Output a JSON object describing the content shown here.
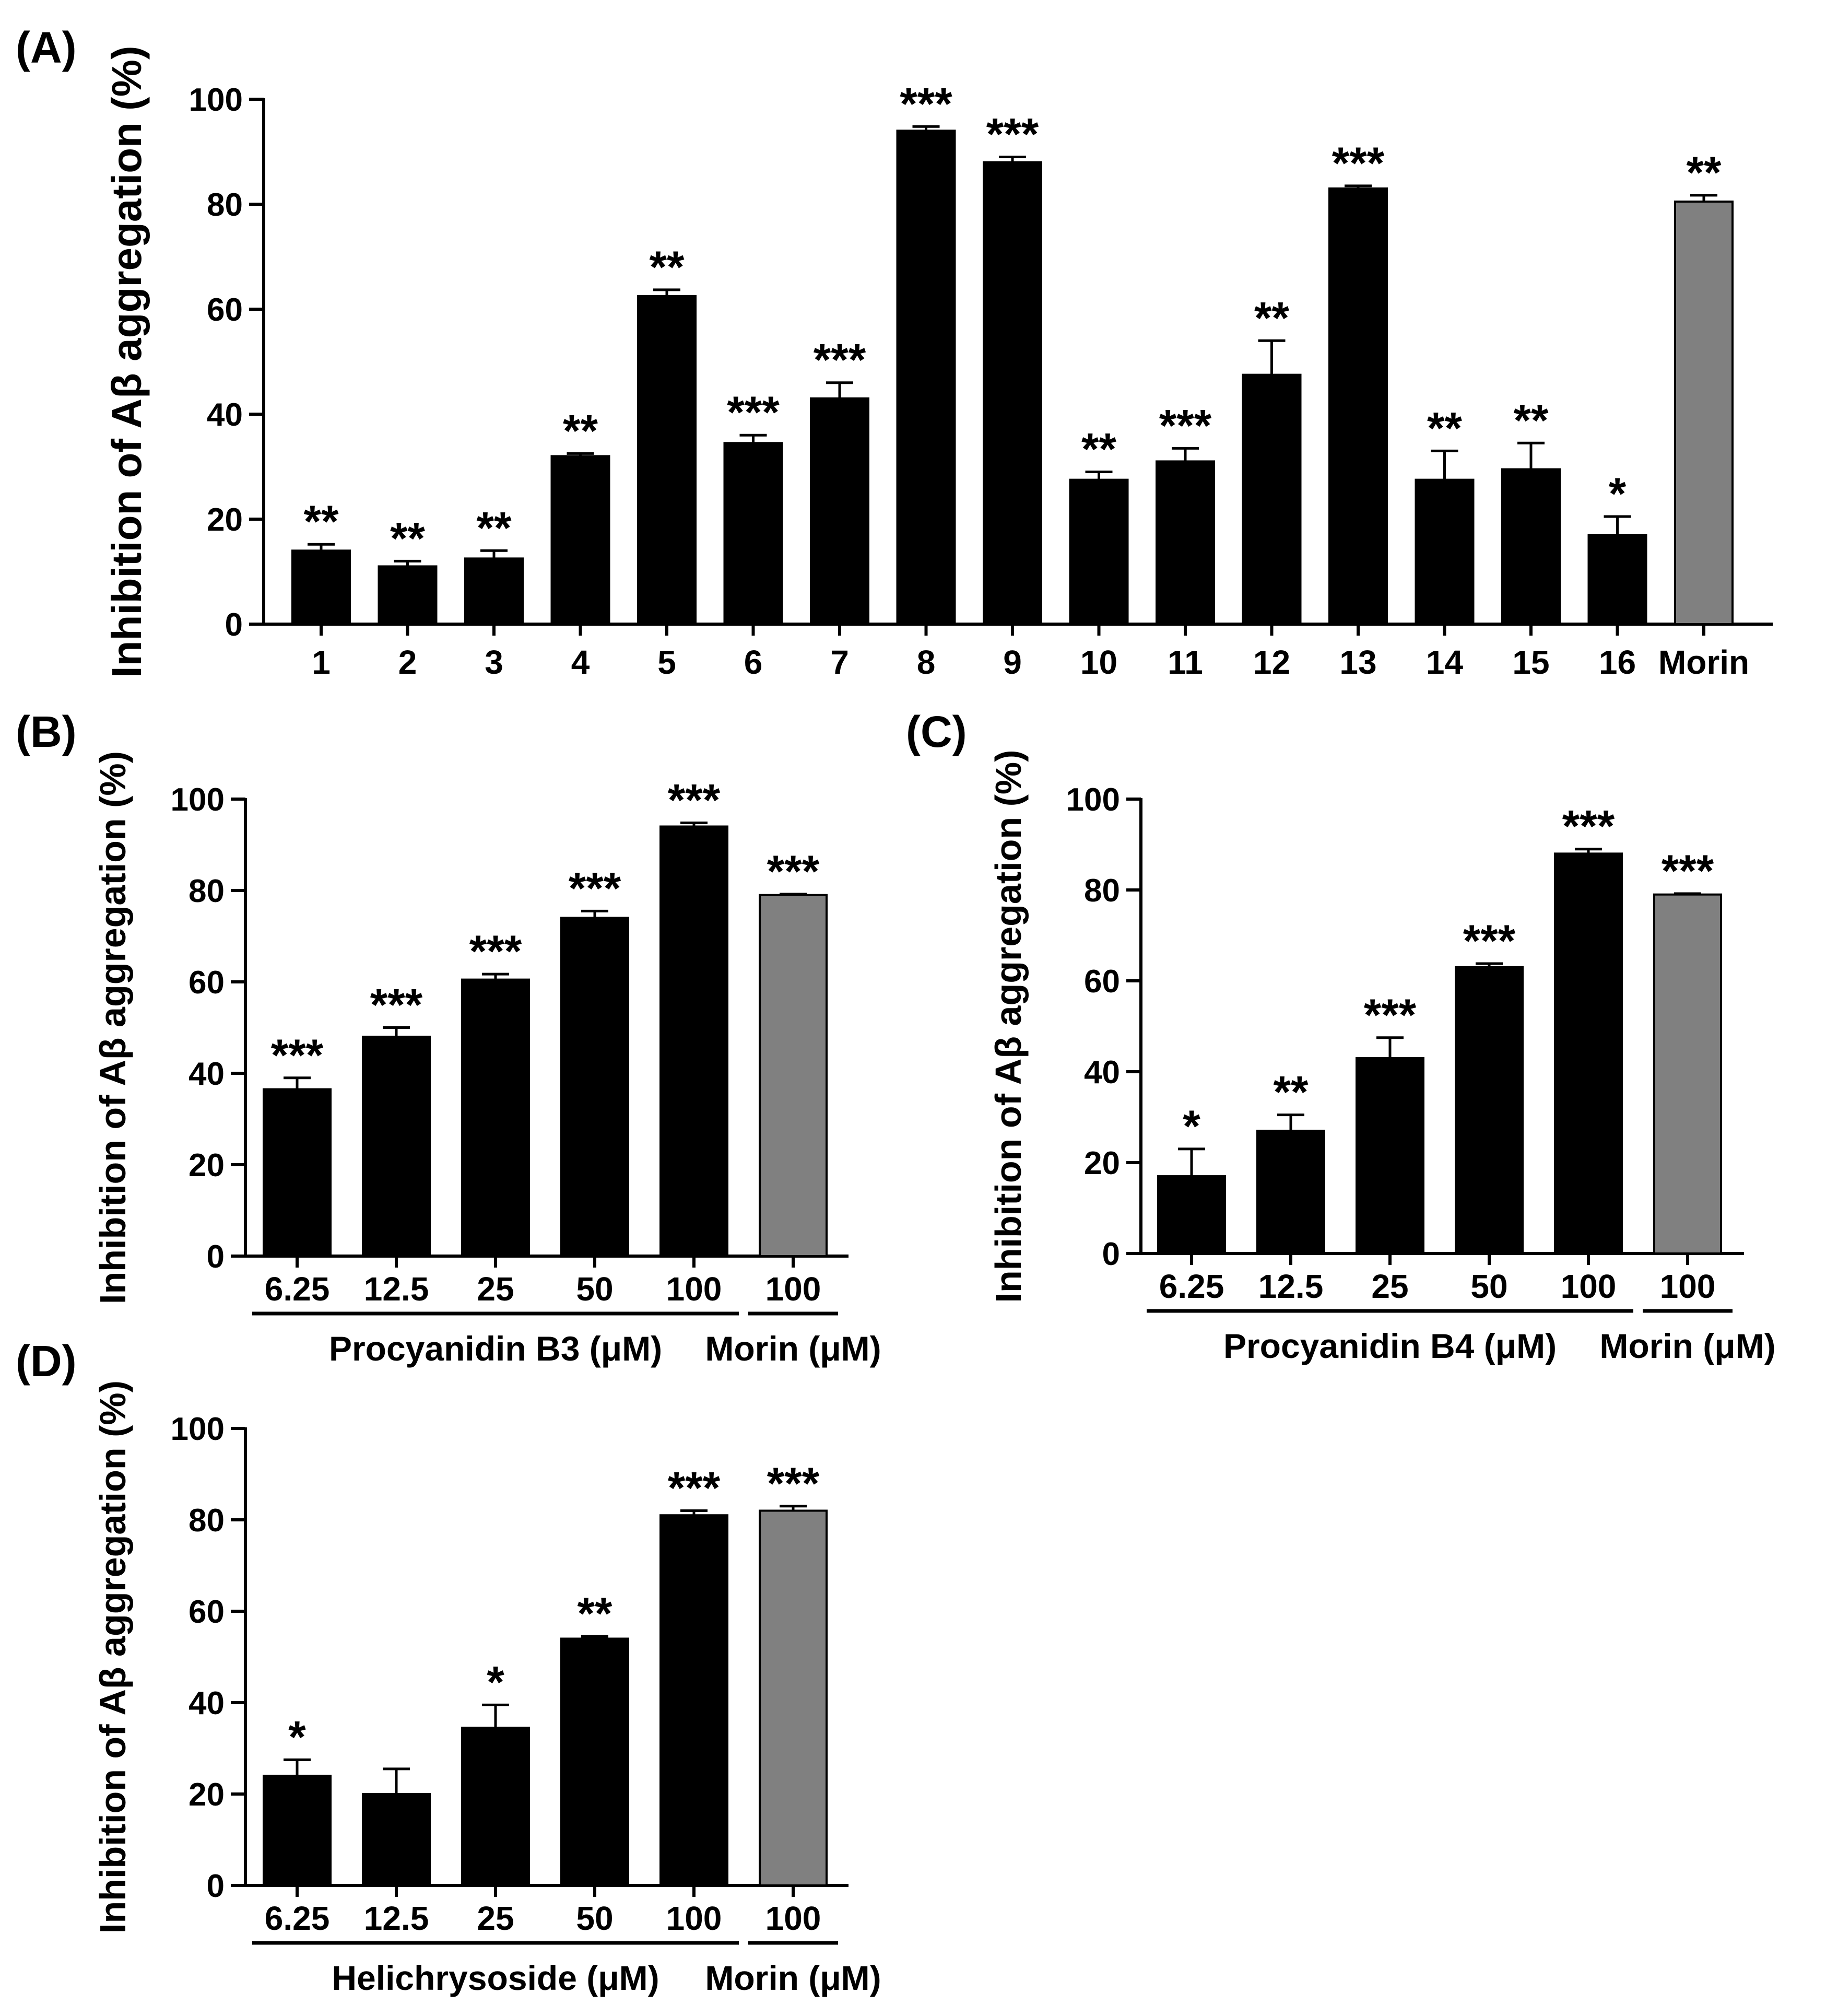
{
  "colors": {
    "bar": "#000000",
    "reference_bar": "#808080",
    "axis": "#000000",
    "background": "#ffffff"
  },
  "chart_data": [
    {
      "panel": "(A)",
      "type": "bar",
      "ylabel": "Inhibition of Aβ aggregation (%)",
      "ylim": [
        0,
        100
      ],
      "yticks": [
        0,
        20,
        40,
        60,
        80,
        100
      ],
      "categories": [
        "1",
        "2",
        "3",
        "4",
        "5",
        "6",
        "7",
        "8",
        "9",
        "10",
        "11",
        "12",
        "13",
        "14",
        "15",
        "16",
        "Morin"
      ],
      "values": [
        14,
        11,
        12.5,
        32,
        62.5,
        34.5,
        43,
        94,
        88,
        27.5,
        31,
        47.5,
        83,
        27.5,
        29.5,
        17,
        80.5
      ],
      "errors": [
        1.2,
        1.0,
        1.5,
        0.5,
        1.2,
        1.5,
        3.0,
        0.8,
        1.0,
        1.5,
        2.5,
        6.5,
        0.5,
        5.5,
        5.0,
        3.5,
        1.2
      ],
      "significance": [
        "**",
        "**",
        "**",
        "**",
        "**",
        "***",
        "***",
        "***",
        "***",
        "**",
        "***",
        "**",
        "***",
        "**",
        "**",
        "*",
        "**"
      ],
      "reference_index": 16
    },
    {
      "panel": "(B)",
      "type": "bar",
      "ylabel": "Inhibition of Aβ aggregation (%)",
      "ylim": [
        0,
        100
      ],
      "yticks": [
        0,
        20,
        40,
        60,
        80,
        100
      ],
      "categories": [
        "6.25",
        "12.5",
        "25",
        "50",
        "100",
        "100"
      ],
      "values": [
        36.5,
        48,
        60.5,
        74,
        94,
        79
      ],
      "errors": [
        2.5,
        2.0,
        1.2,
        1.5,
        0.8,
        0.2
      ],
      "significance": [
        "***",
        "***",
        "***",
        "***",
        "***",
        "***"
      ],
      "reference_index": 5,
      "group_labels": [
        "Procyanidin B3 (μM)",
        "Morin (μM)"
      ]
    },
    {
      "panel": "(C)",
      "type": "bar",
      "ylabel": "Inhibition of Aβ aggregation (%)",
      "ylim": [
        0,
        100
      ],
      "yticks": [
        0,
        20,
        40,
        60,
        80,
        100
      ],
      "categories": [
        "6.25",
        "12.5",
        "25",
        "50",
        "100",
        "100"
      ],
      "values": [
        17,
        27,
        43,
        63,
        88,
        79
      ],
      "errors": [
        6.0,
        3.5,
        4.5,
        0.8,
        1.0,
        0.2
      ],
      "significance": [
        "*",
        "**",
        "***",
        "***",
        "***",
        "***"
      ],
      "reference_index": 5,
      "group_labels": [
        "Procyanidin B4 (μM)",
        "Morin (μM)"
      ]
    },
    {
      "panel": "(D)",
      "type": "bar",
      "ylabel": "Inhibition of Aβ aggregation (%)",
      "ylim": [
        0,
        100
      ],
      "yticks": [
        0,
        20,
        40,
        60,
        80,
        100
      ],
      "categories": [
        "6.25",
        "12.5",
        "25",
        "50",
        "100",
        "100"
      ],
      "values": [
        24,
        20,
        34.5,
        54,
        81,
        82
      ],
      "errors": [
        3.5,
        5.5,
        5.0,
        0.5,
        1.0,
        1.0
      ],
      "significance": [
        "*",
        "",
        "*",
        "**",
        "***",
        "***"
      ],
      "reference_index": 5,
      "group_labels": [
        "Helichrysoside (μM)",
        "Morin (μM)"
      ]
    }
  ]
}
